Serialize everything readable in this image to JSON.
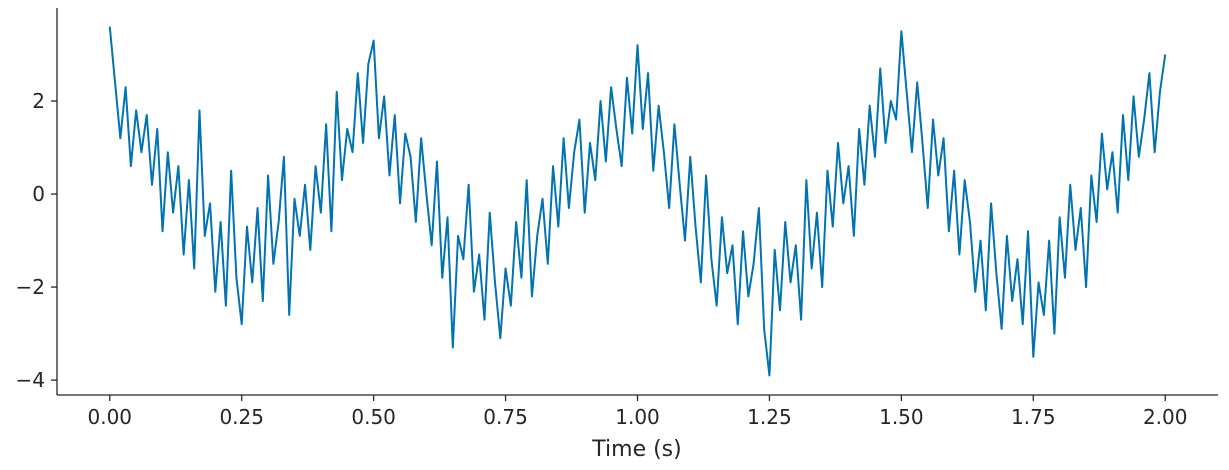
{
  "chart_data": {
    "type": "line",
    "x_label": "Time (s)",
    "color": "#0173b2",
    "xlim": [
      -0.1,
      2.1
    ],
    "ylim": [
      -4.32,
      4.0
    ],
    "xticks": [
      {
        "value": 0,
        "label": "0.00"
      },
      {
        "value": 0.25,
        "label": "0.25"
      },
      {
        "value": 0.5,
        "label": "0.50"
      },
      {
        "value": 0.75,
        "label": "0.75"
      },
      {
        "value": 1,
        "label": "1.00"
      },
      {
        "value": 1.25,
        "label": "1.25"
      },
      {
        "value": 1.5,
        "label": "1.50"
      },
      {
        "value": 1.75,
        "label": "1.75"
      },
      {
        "value": 2,
        "label": "2.00"
      }
    ],
    "yticks": [
      {
        "value": -4,
        "label": "−4"
      },
      {
        "value": -2,
        "label": "−2"
      },
      0,
      2
    ],
    "x": [
      0,
      0.01,
      0.02,
      0.03,
      0.04,
      0.05,
      0.06,
      0.07,
      0.08,
      0.09,
      0.1,
      0.11,
      0.12,
      0.13,
      0.14,
      0.15,
      0.16,
      0.17,
      0.18,
      0.19,
      0.2,
      0.21,
      0.22,
      0.23,
      0.24,
      0.25,
      0.26,
      0.27,
      0.28,
      0.29,
      0.3,
      0.31,
      0.32,
      0.33,
      0.34,
      0.35,
      0.36,
      0.37,
      0.38,
      0.39,
      0.4,
      0.41,
      0.42,
      0.43,
      0.44,
      0.45,
      0.46,
      0.47,
      0.48,
      0.49,
      0.5,
      0.51,
      0.52,
      0.53,
      0.54,
      0.55,
      0.56,
      0.57,
      0.58,
      0.59,
      0.6,
      0.61,
      0.62,
      0.63,
      0.64,
      0.65,
      0.66,
      0.67,
      0.68,
      0.69,
      0.7,
      0.71,
      0.72,
      0.73,
      0.74,
      0.75,
      0.76,
      0.77,
      0.78,
      0.79,
      0.8,
      0.81,
      0.82,
      0.83,
      0.84,
      0.85,
      0.86,
      0.87,
      0.88,
      0.89,
      0.9,
      0.91,
      0.92,
      0.93,
      0.94,
      0.95,
      0.96,
      0.97,
      0.98,
      0.99,
      1,
      1.01,
      1.02,
      1.03,
      1.04,
      1.05,
      1.06,
      1.07,
      1.08,
      1.09,
      1.1,
      1.11,
      1.12,
      1.13,
      1.14,
      1.15,
      1.16,
      1.17,
      1.18,
      1.19,
      1.2,
      1.21,
      1.22,
      1.23,
      1.24,
      1.25,
      1.26,
      1.27,
      1.28,
      1.29,
      1.3,
      1.31,
      1.32,
      1.33,
      1.34,
      1.35,
      1.36,
      1.37,
      1.38,
      1.39,
      1.4,
      1.41,
      1.42,
      1.43,
      1.44,
      1.45,
      1.46,
      1.47,
      1.48,
      1.49,
      1.5,
      1.51,
      1.52,
      1.53,
      1.54,
      1.55,
      1.56,
      1.57,
      1.58,
      1.59,
      1.6,
      1.61,
      1.62,
      1.63,
      1.64,
      1.65,
      1.66,
      1.67,
      1.68,
      1.69,
      1.7,
      1.71,
      1.72,
      1.73,
      1.74,
      1.75,
      1.76,
      1.77,
      1.78,
      1.79,
      1.8,
      1.81,
      1.82,
      1.83,
      1.84,
      1.85,
      1.86,
      1.87,
      1.88,
      1.89,
      1.9,
      1.91,
      1.92,
      1.93,
      1.94,
      1.95,
      1.96,
      1.97,
      1.98,
      1.99,
      2
    ],
    "values": [
      3.6,
      2.4,
      1.2,
      2.3,
      0.6,
      1.8,
      0.9,
      1.7,
      0.2,
      1.4,
      -0.8,
      0.9,
      -0.4,
      0.6,
      -1.3,
      0.3,
      -1.6,
      1.8,
      -0.9,
      -0.2,
      -2.1,
      -0.6,
      -2.4,
      0.5,
      -1.8,
      -2.8,
      -0.7,
      -1.9,
      -0.3,
      -2.3,
      0.4,
      -1.5,
      -0.6,
      0.8,
      -2.6,
      -0.1,
      -0.9,
      0.2,
      -1.2,
      0.6,
      -0.4,
      1.5,
      -0.8,
      2.2,
      0.3,
      1.4,
      0.9,
      2.6,
      1.1,
      2.8,
      3.3,
      1.2,
      2.1,
      0.4,
      1.7,
      -0.2,
      1.3,
      0.8,
      -0.6,
      1.2,
      0.0,
      -1.1,
      0.7,
      -1.8,
      -0.5,
      -3.3,
      -0.9,
      -1.4,
      0.2,
      -2.1,
      -1.3,
      -2.7,
      -0.4,
      -1.9,
      -3.1,
      -1.6,
      -2.4,
      -0.6,
      -1.8,
      0.3,
      -2.2,
      -0.9,
      -0.1,
      -1.5,
      0.6,
      -0.7,
      1.2,
      -0.3,
      0.9,
      1.6,
      -0.4,
      1.1,
      0.3,
      2.0,
      0.7,
      2.3,
      1.4,
      0.6,
      2.5,
      1.3,
      3.2,
      1.4,
      2.6,
      0.5,
      1.9,
      0.9,
      -0.3,
      1.5,
      0.2,
      -1.0,
      0.8,
      -0.7,
      -1.9,
      0.4,
      -1.4,
      -2.4,
      -0.5,
      -1.7,
      -1.1,
      -2.8,
      -0.8,
      -2.2,
      -1.5,
      -0.3,
      -2.9,
      -3.9,
      -1.2,
      -2.5,
      -0.6,
      -1.9,
      -1.1,
      -2.7,
      0.3,
      -1.6,
      -0.4,
      -2.0,
      0.5,
      -0.7,
      1.1,
      -0.2,
      0.6,
      -0.9,
      1.4,
      0.2,
      1.9,
      0.8,
      2.7,
      1.1,
      2.0,
      1.6,
      3.5,
      2.2,
      0.9,
      2.4,
      1.1,
      -0.3,
      1.6,
      0.4,
      1.2,
      -0.8,
      0.5,
      -1.3,
      0.3,
      -0.6,
      -2.1,
      -1.0,
      -2.5,
      -0.2,
      -1.7,
      -2.9,
      -0.9,
      -2.3,
      -1.4,
      -2.8,
      -0.8,
      -3.5,
      -1.9,
      -2.6,
      -1.0,
      -3.0,
      -0.5,
      -1.8,
      0.2,
      -1.2,
      -0.3,
      -2.0,
      0.4,
      -0.6,
      1.3,
      0.1,
      0.9,
      -0.4,
      1.7,
      0.3,
      2.1,
      0.8,
      1.6,
      2.6,
      0.9,
      2.2,
      3.0
    ]
  }
}
